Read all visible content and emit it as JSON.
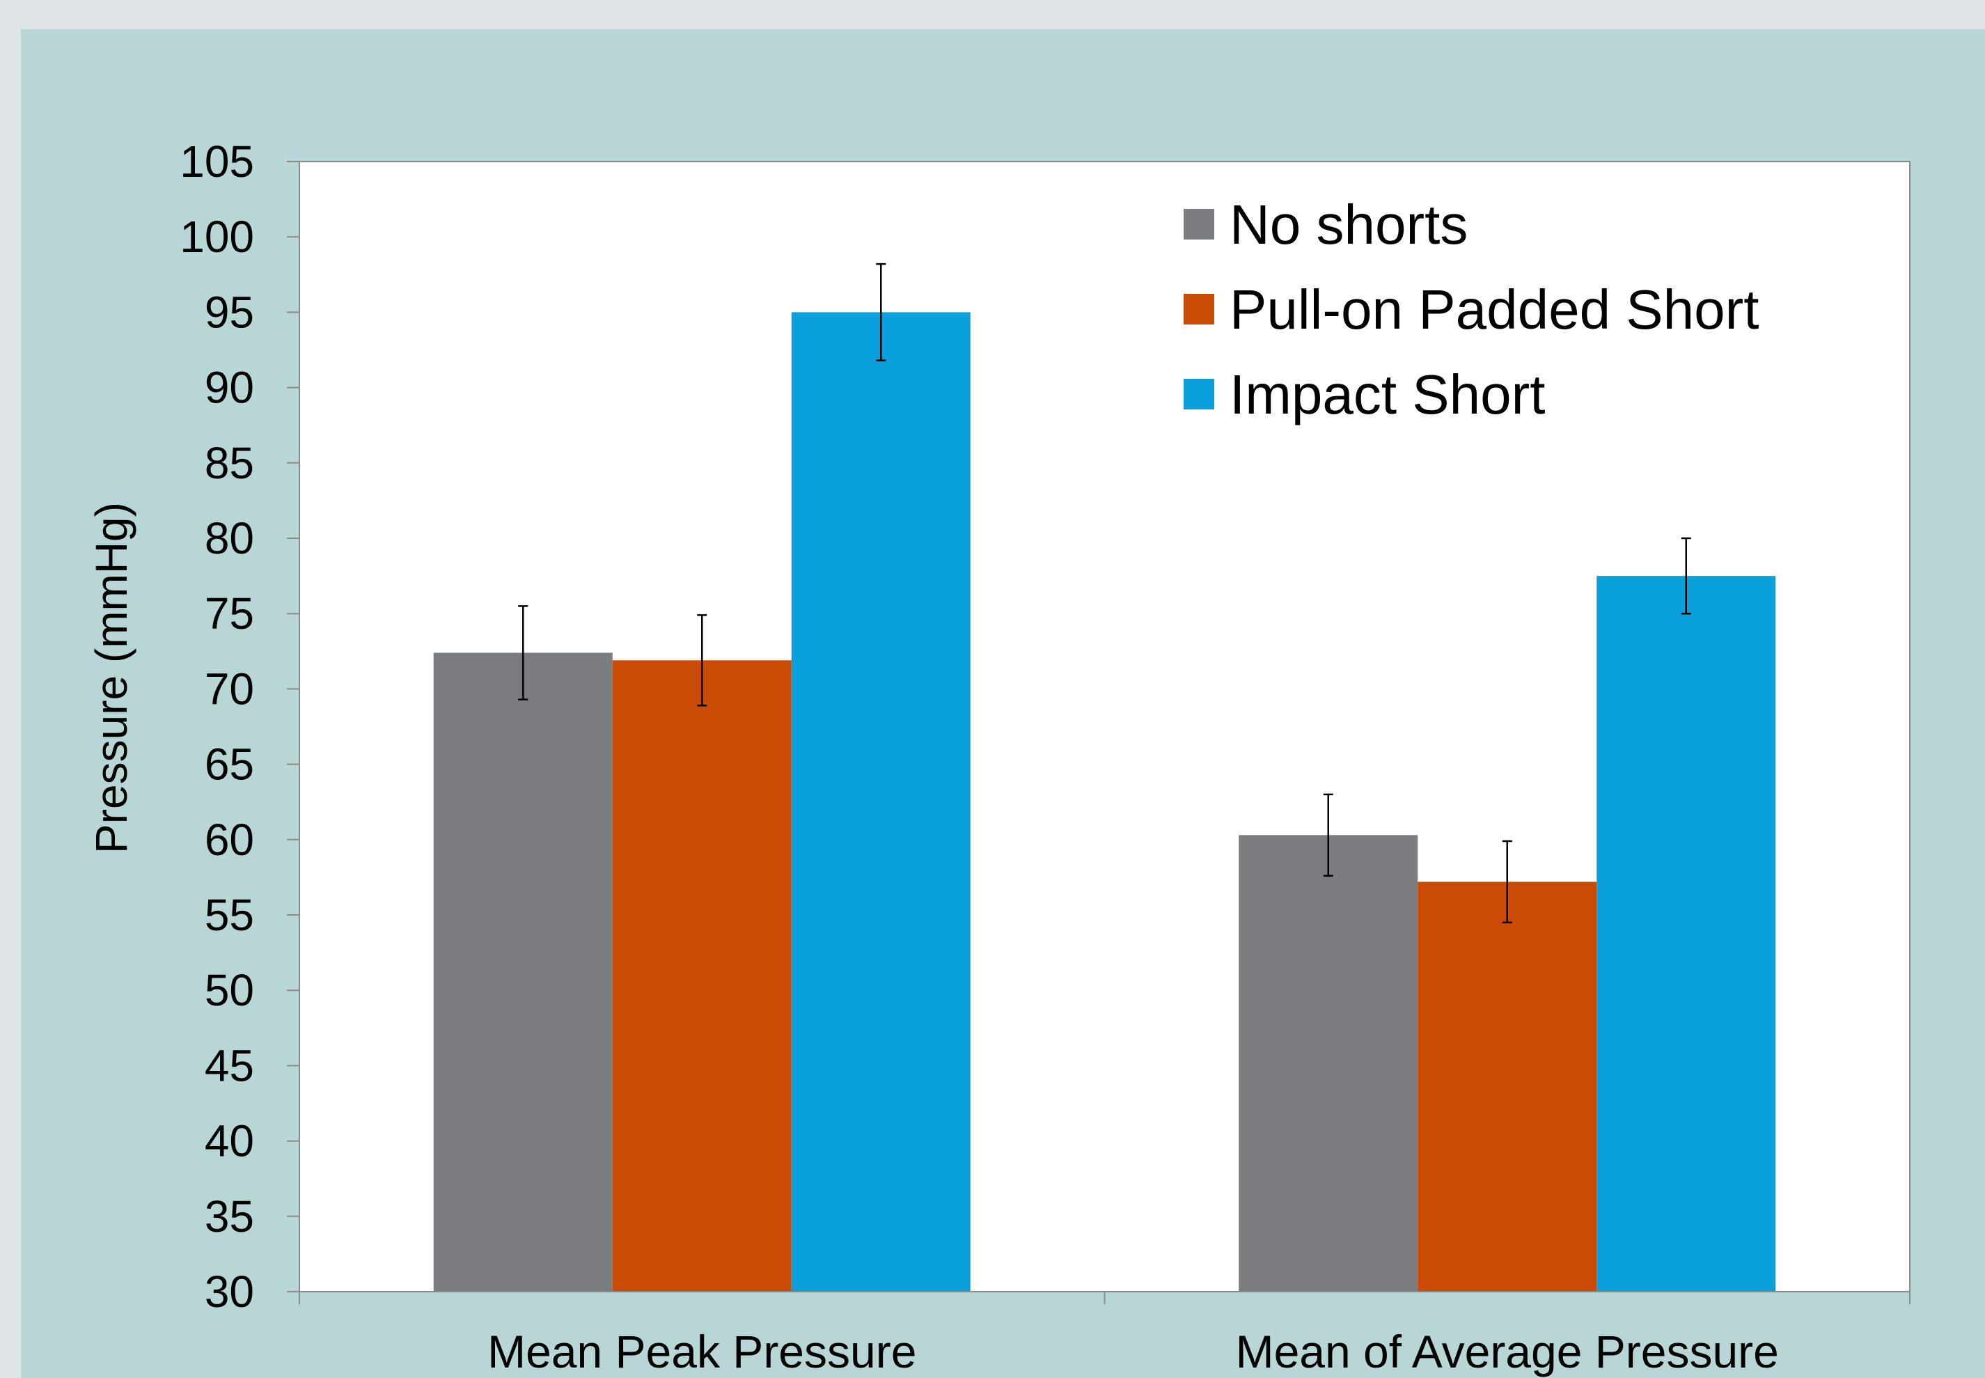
{
  "chart_data": {
    "type": "bar",
    "categories": [
      "Mean Peak Pressure",
      "Mean of Average Pressure"
    ],
    "series": [
      {
        "name": "No shorts",
        "color": "#7b7c80",
        "values": [
          72.4,
          60.3
        ],
        "errors": [
          3.1,
          2.7
        ]
      },
      {
        "name": "Pull-on Padded Short",
        "color": "#c94b06",
        "values": [
          71.9,
          57.2
        ],
        "errors": [
          3.0,
          2.7
        ]
      },
      {
        "name": "Impact Short",
        "color": "#0aa0db",
        "values": [
          95.0,
          77.5
        ],
        "errors": [
          3.2,
          2.5
        ]
      }
    ],
    "title": "",
    "xlabel": "",
    "ylabel": "Pressure (mmHg)",
    "ylim": [
      30,
      105
    ],
    "yticks": [
      "30",
      "35",
      "40",
      "45",
      "50",
      "55",
      "60",
      "65",
      "70",
      "75",
      "80",
      "85",
      "90",
      "95",
      "100",
      "105"
    ],
    "legend_position": "top-right",
    "grid": false
  }
}
